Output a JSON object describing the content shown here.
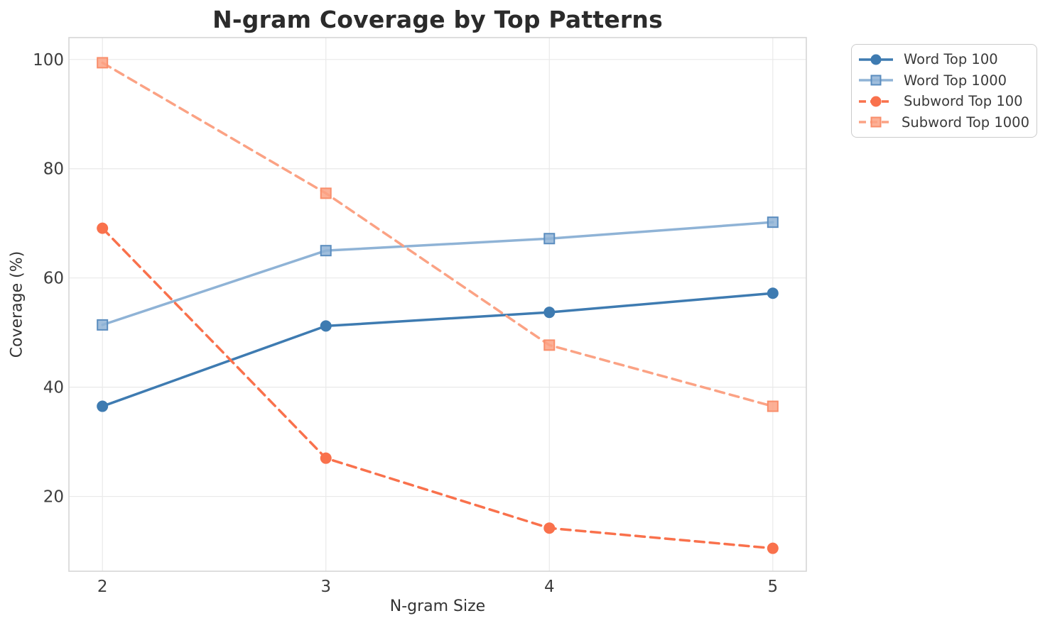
{
  "figure": {
    "background": "#ffffff",
    "plot_border_color": "#d6d6d6",
    "grid_color": "#e9e9e9",
    "tick_label_color": "#3d3d3d",
    "text_color": "#333333"
  },
  "chart_data": {
    "type": "line",
    "title": "N-gram Coverage by Top Patterns",
    "xlabel": "N-gram Size",
    "ylabel": "Coverage (%)",
    "x": [
      2,
      3,
      4,
      5
    ],
    "xtick_labels": [
      "2",
      "3",
      "4",
      "5"
    ],
    "ytick_values": [
      20,
      40,
      60,
      80,
      100
    ],
    "ytick_labels": [
      "20",
      "40",
      "60",
      "80",
      "100"
    ],
    "xlim": [
      1.85,
      5.15
    ],
    "ylim": [
      6.3,
      104
    ],
    "grid": true,
    "legend_position": "outside upper right",
    "series": [
      {
        "name": "Word Top 100",
        "values": [
          36.5,
          51.2,
          53.7,
          57.2
        ],
        "color": "#3E7BB1",
        "line_style": "solid",
        "marker": "circle",
        "marker_edge": "#3E7BB1"
      },
      {
        "name": "Word Top 1000",
        "values": [
          51.4,
          65.0,
          67.2,
          70.2
        ],
        "color": "#8FB3D6",
        "line_style": "solid",
        "marker": "square",
        "marker_edge": "#5B8DBF"
      },
      {
        "name": "Subword Top 100",
        "values": [
          69.1,
          27.0,
          14.2,
          10.5
        ],
        "color": "#F9714C",
        "line_style": "dashed",
        "marker": "circle",
        "marker_edge": "#F9714C"
      },
      {
        "name": "Subword Top 1000",
        "values": [
          99.4,
          75.5,
          47.7,
          36.5
        ],
        "color": "#FBA284",
        "line_style": "dashed",
        "marker": "square",
        "marker_edge": "#F98E6B"
      }
    ]
  }
}
